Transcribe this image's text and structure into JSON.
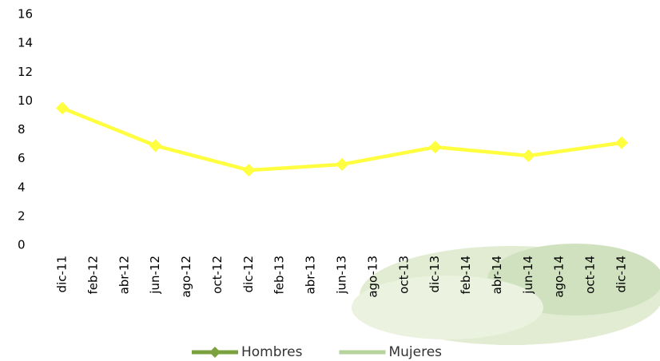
{
  "chart_data": {
    "type": "line",
    "categories": [
      "dic-11",
      "feb-12",
      "abr-12",
      "jun-12",
      "ago-12",
      "oct-12",
      "dic-12",
      "feb-13",
      "abr-13",
      "jun-13",
      "ago-13",
      "oct-13",
      "dic-13",
      "feb-14",
      "abr-14",
      "jun-14",
      "ago-14",
      "oct-14",
      "dic-14"
    ],
    "series": [
      {
        "name": "Hombres",
        "color": "#ffff40",
        "legend_color": "#7ba23f",
        "x": [
          "dic-11",
          "jun-12",
          "dic-12",
          "jun-13",
          "dic-13",
          "jun-14",
          "dic-14"
        ],
        "values": [
          9.5,
          6.9,
          5.2,
          5.6,
          6.8,
          6.2,
          7.1
        ]
      },
      {
        "name": "Mujeres",
        "legend_color": "#b6d39c"
      }
    ],
    "ylim": [
      0,
      16
    ],
    "yticks": [
      0,
      2,
      4,
      6,
      8,
      10,
      12,
      14,
      16
    ],
    "grid": false
  }
}
